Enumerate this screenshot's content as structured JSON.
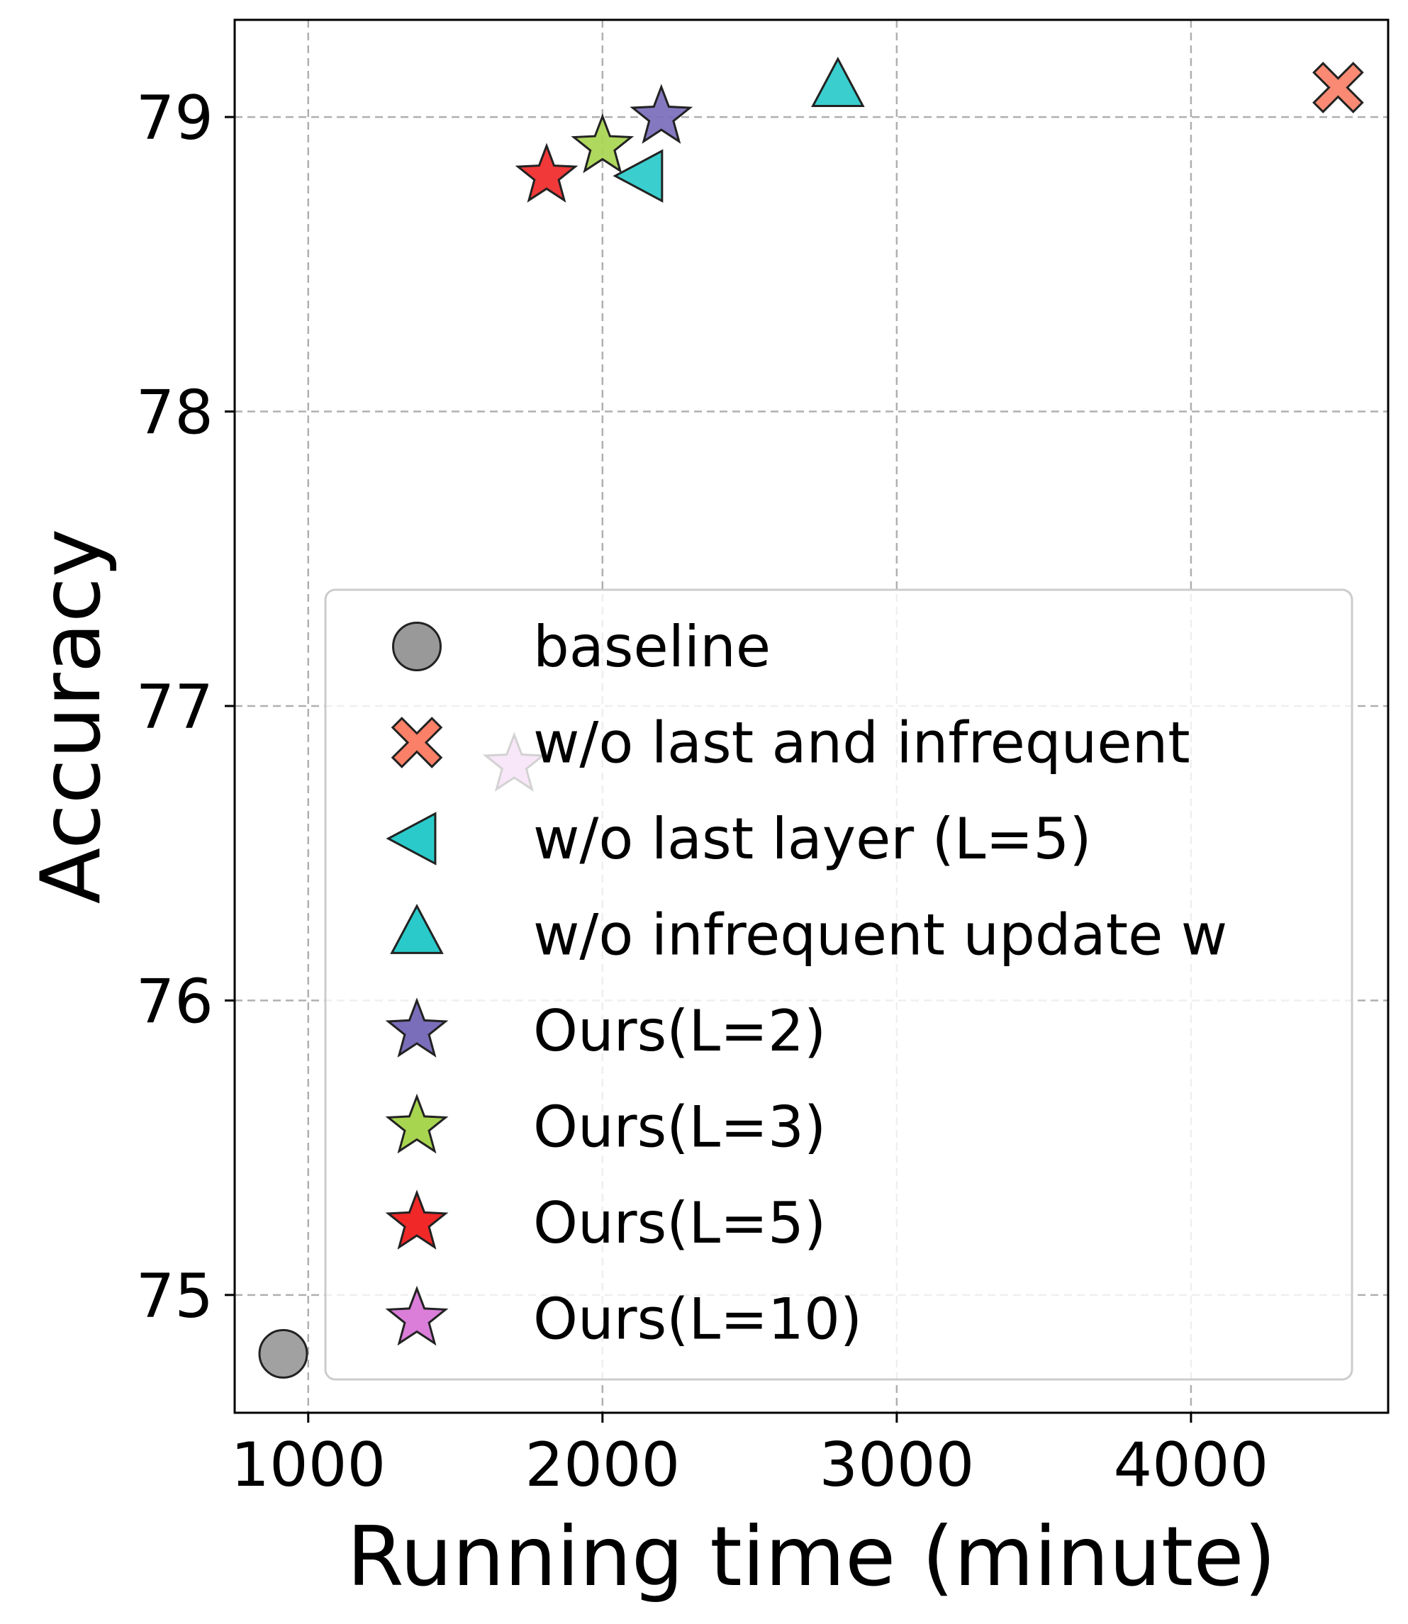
{
  "chart_data": {
    "type": "scatter",
    "title": "",
    "xlabel": "Running time (minute)",
    "ylabel": "Accuracy",
    "xlim": [
      750,
      4670
    ],
    "ylim": [
      74.6,
      79.33
    ],
    "xticks": [
      1000,
      2000,
      3000,
      4000
    ],
    "yticks": [
      75,
      76,
      77,
      78,
      79
    ],
    "grid": true,
    "legend_position": "lower-right",
    "series": [
      {
        "name": "baseline",
        "marker": "circle",
        "color": "#999999",
        "points": [
          {
            "x": 915,
            "y": 74.8
          }
        ]
      },
      {
        "name": "w/o last and infrequent",
        "marker": "x",
        "color": "#FA8067",
        "points": [
          {
            "x": 4500,
            "y": 79.1
          }
        ]
      },
      {
        "name": "w/o last layer (L=5)",
        "marker": "triangle-left",
        "color": "#2ACACA",
        "points": [
          {
            "x": 2140,
            "y": 78.8
          }
        ]
      },
      {
        "name": "w/o infrequent update w",
        "marker": "triangle-up",
        "color": "#2ACACA",
        "points": [
          {
            "x": 2800,
            "y": 79.1
          }
        ]
      },
      {
        "name": "Ours(L=2)",
        "marker": "star",
        "color": "#7A6EBB",
        "points": [
          {
            "x": 2200,
            "y": 79.0
          }
        ]
      },
      {
        "name": "Ours(L=3)",
        "marker": "star",
        "color": "#A8D550",
        "points": [
          {
            "x": 2000,
            "y": 78.9
          }
        ]
      },
      {
        "name": "Ours(L=5)",
        "marker": "star",
        "color": "#F02828",
        "points": [
          {
            "x": 1810,
            "y": 78.8
          }
        ]
      },
      {
        "name": "Ours(L=10)",
        "marker": "star",
        "color": "#DA7EDA",
        "points": [
          {
            "x": 1700,
            "y": 76.8
          }
        ]
      }
    ]
  }
}
